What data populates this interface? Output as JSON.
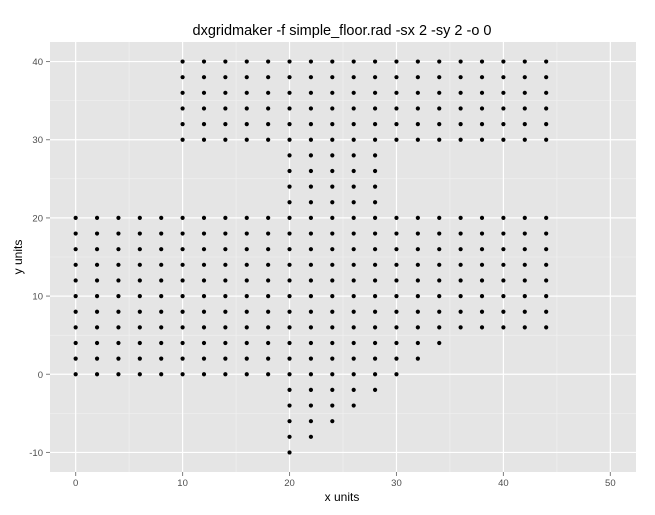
{
  "chart_data": {
    "type": "scatter",
    "title": "dxgridmaker -f simple_floor.rad -sx 2 -sy 2 -o 0",
    "xlabel": "x units",
    "ylabel": "y units",
    "xlim": [
      -2.4,
      52.4
    ],
    "ylim": [
      -12.5,
      42.5
    ],
    "xticks": [
      0,
      10,
      20,
      30,
      40,
      50
    ],
    "yticks": [
      -10,
      0,
      10,
      20,
      30,
      40
    ],
    "grid": true,
    "point_color": "#000000",
    "panel_background": "#e5e5e5",
    "grid_color": "#ffffff",
    "grid_step_x": 2,
    "grid_step_y": 2,
    "point_regions": [
      {
        "x": [
          0,
          18
        ],
        "y": [
          0,
          20
        ]
      },
      {
        "x": [
          10,
          44
        ],
        "y": [
          30,
          40
        ]
      },
      {
        "x": [
          20,
          28
        ],
        "y": [
          22,
          28
        ]
      },
      {
        "x": [
          20,
          44
        ],
        "y": [
          20,
          20
        ]
      },
      {
        "x": [
          20,
          44
        ],
        "y": [
          6,
          18
        ]
      },
      {
        "x": [
          20,
          34
        ],
        "y": [
          4,
          4
        ]
      },
      {
        "x": [
          20,
          32
        ],
        "y": [
          2,
          2
        ]
      },
      {
        "x": [
          20,
          30
        ],
        "y": [
          0,
          0
        ]
      },
      {
        "x": [
          20,
          28
        ],
        "y": [
          -2,
          -2
        ]
      },
      {
        "x": [
          20,
          26
        ],
        "y": [
          -4,
          -4
        ]
      },
      {
        "x": [
          20,
          24
        ],
        "y": [
          -6,
          -6
        ]
      },
      {
        "x": [
          20,
          22
        ],
        "y": [
          -8,
          -8
        ]
      },
      {
        "x": [
          20,
          20
        ],
        "y": [
          -10,
          -10
        ]
      }
    ]
  }
}
